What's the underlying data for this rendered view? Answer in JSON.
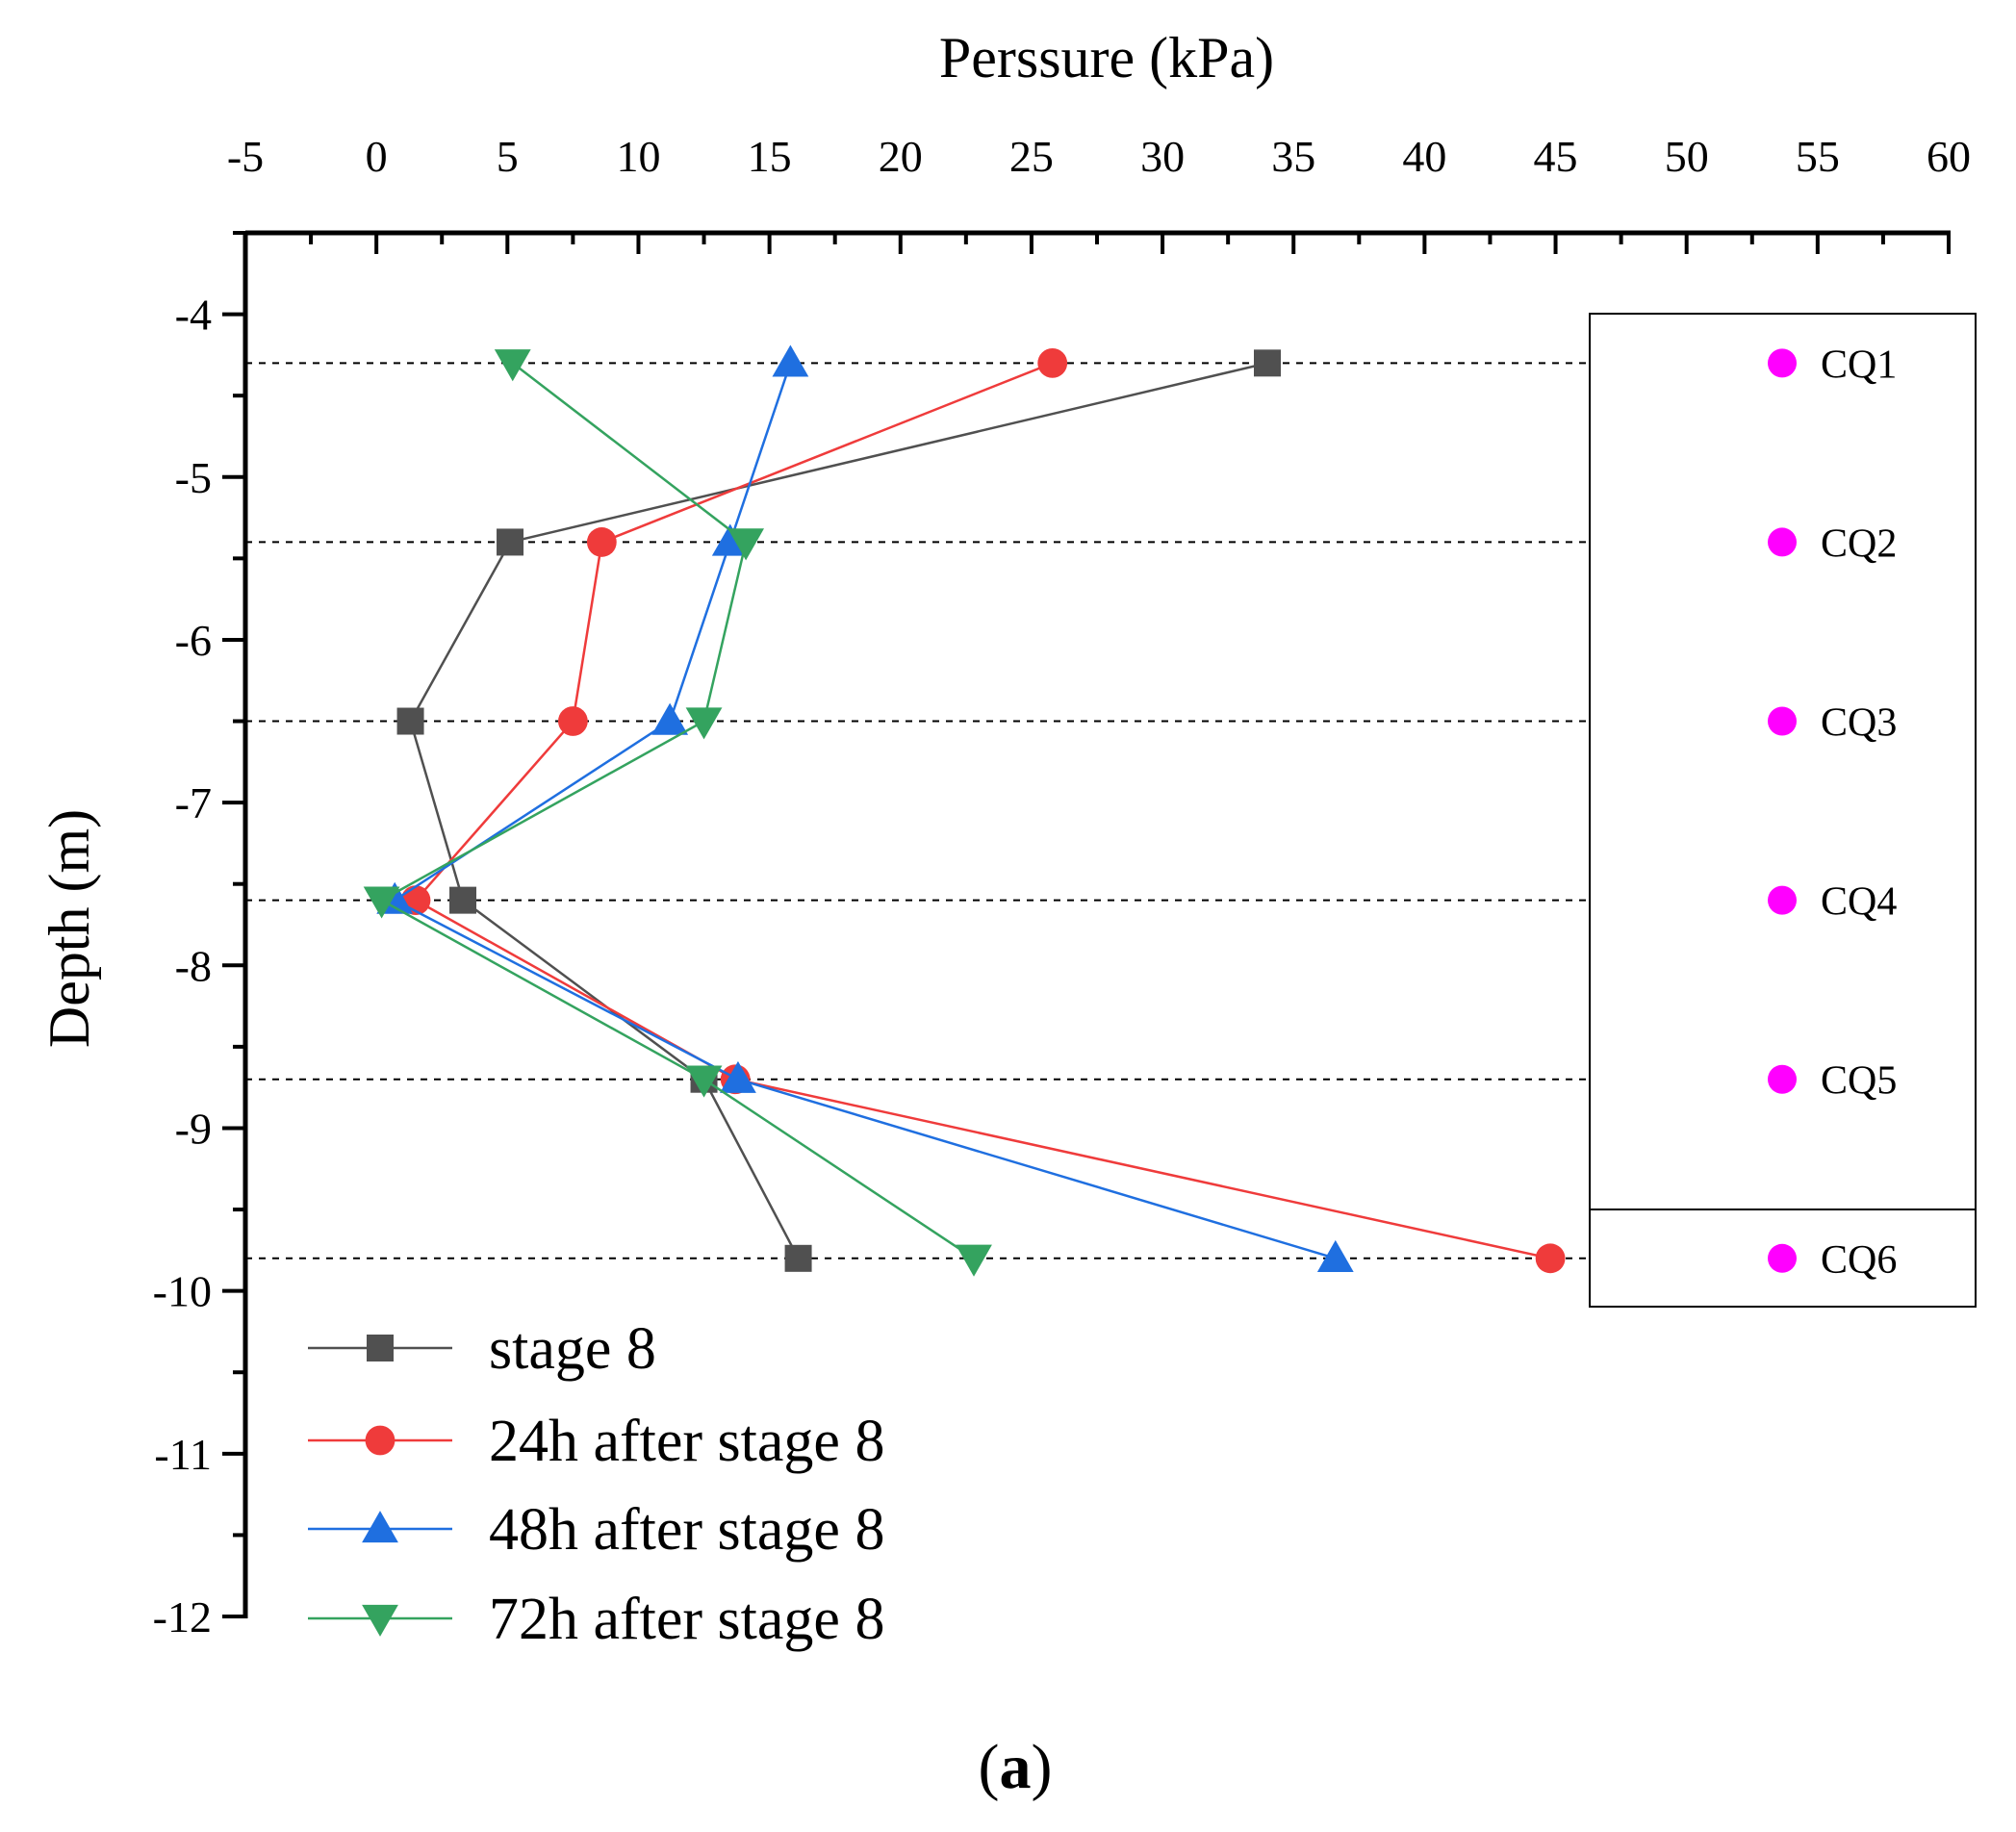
{
  "chart_data": {
    "type": "line",
    "xlabel": "Perssure (kPa)",
    "ylabel": "Depth (m)",
    "caption_open": "(",
    "caption_letter": "a",
    "caption_close": ")",
    "xlim": [
      -5,
      60
    ],
    "ylim": [
      -12,
      -3.5
    ],
    "xticks": [
      -5,
      0,
      5,
      10,
      15,
      20,
      25,
      30,
      35,
      40,
      45,
      50,
      55,
      60
    ],
    "yticks": [
      -4,
      -5,
      -6,
      -7,
      -8,
      -9,
      -10,
      -11,
      -12
    ],
    "x_axis_position": "top",
    "grid": false,
    "legend_position": "bottom-left",
    "depths": [
      -4.3,
      -5.4,
      -6.5,
      -7.6,
      -8.7,
      -9.8
    ],
    "series": [
      {
        "name": "stage 8",
        "marker": "square",
        "color": "#505050",
        "values": [
          34.0,
          5.1,
          1.3,
          3.3,
          12.5,
          16.1
        ]
      },
      {
        "name": "24h after stage 8",
        "marker": "circle",
        "color": "#ef3b3b",
        "values": [
          25.8,
          8.6,
          7.5,
          1.5,
          13.7,
          44.8
        ]
      },
      {
        "name": "48h after stage 8",
        "marker": "triangle-up",
        "color": "#1f6fe0",
        "values": [
          15.8,
          13.5,
          11.2,
          0.7,
          13.8,
          36.6
        ]
      },
      {
        "name": "72h after stage 8",
        "marker": "triangle-down",
        "color": "#34a35f",
        "values": [
          5.2,
          14.1,
          12.5,
          0.2,
          12.5,
          22.8
        ]
      }
    ],
    "sensors": {
      "color": "#ff00ff",
      "items": [
        {
          "label": "CQ1",
          "depth": -4.3
        },
        {
          "label": "CQ2",
          "depth": -5.4
        },
        {
          "label": "CQ3",
          "depth": -6.5
        },
        {
          "label": "CQ4",
          "depth": -7.6
        },
        {
          "label": "CQ5",
          "depth": -8.7
        },
        {
          "label": "CQ6",
          "depth": -9.8
        }
      ]
    }
  }
}
